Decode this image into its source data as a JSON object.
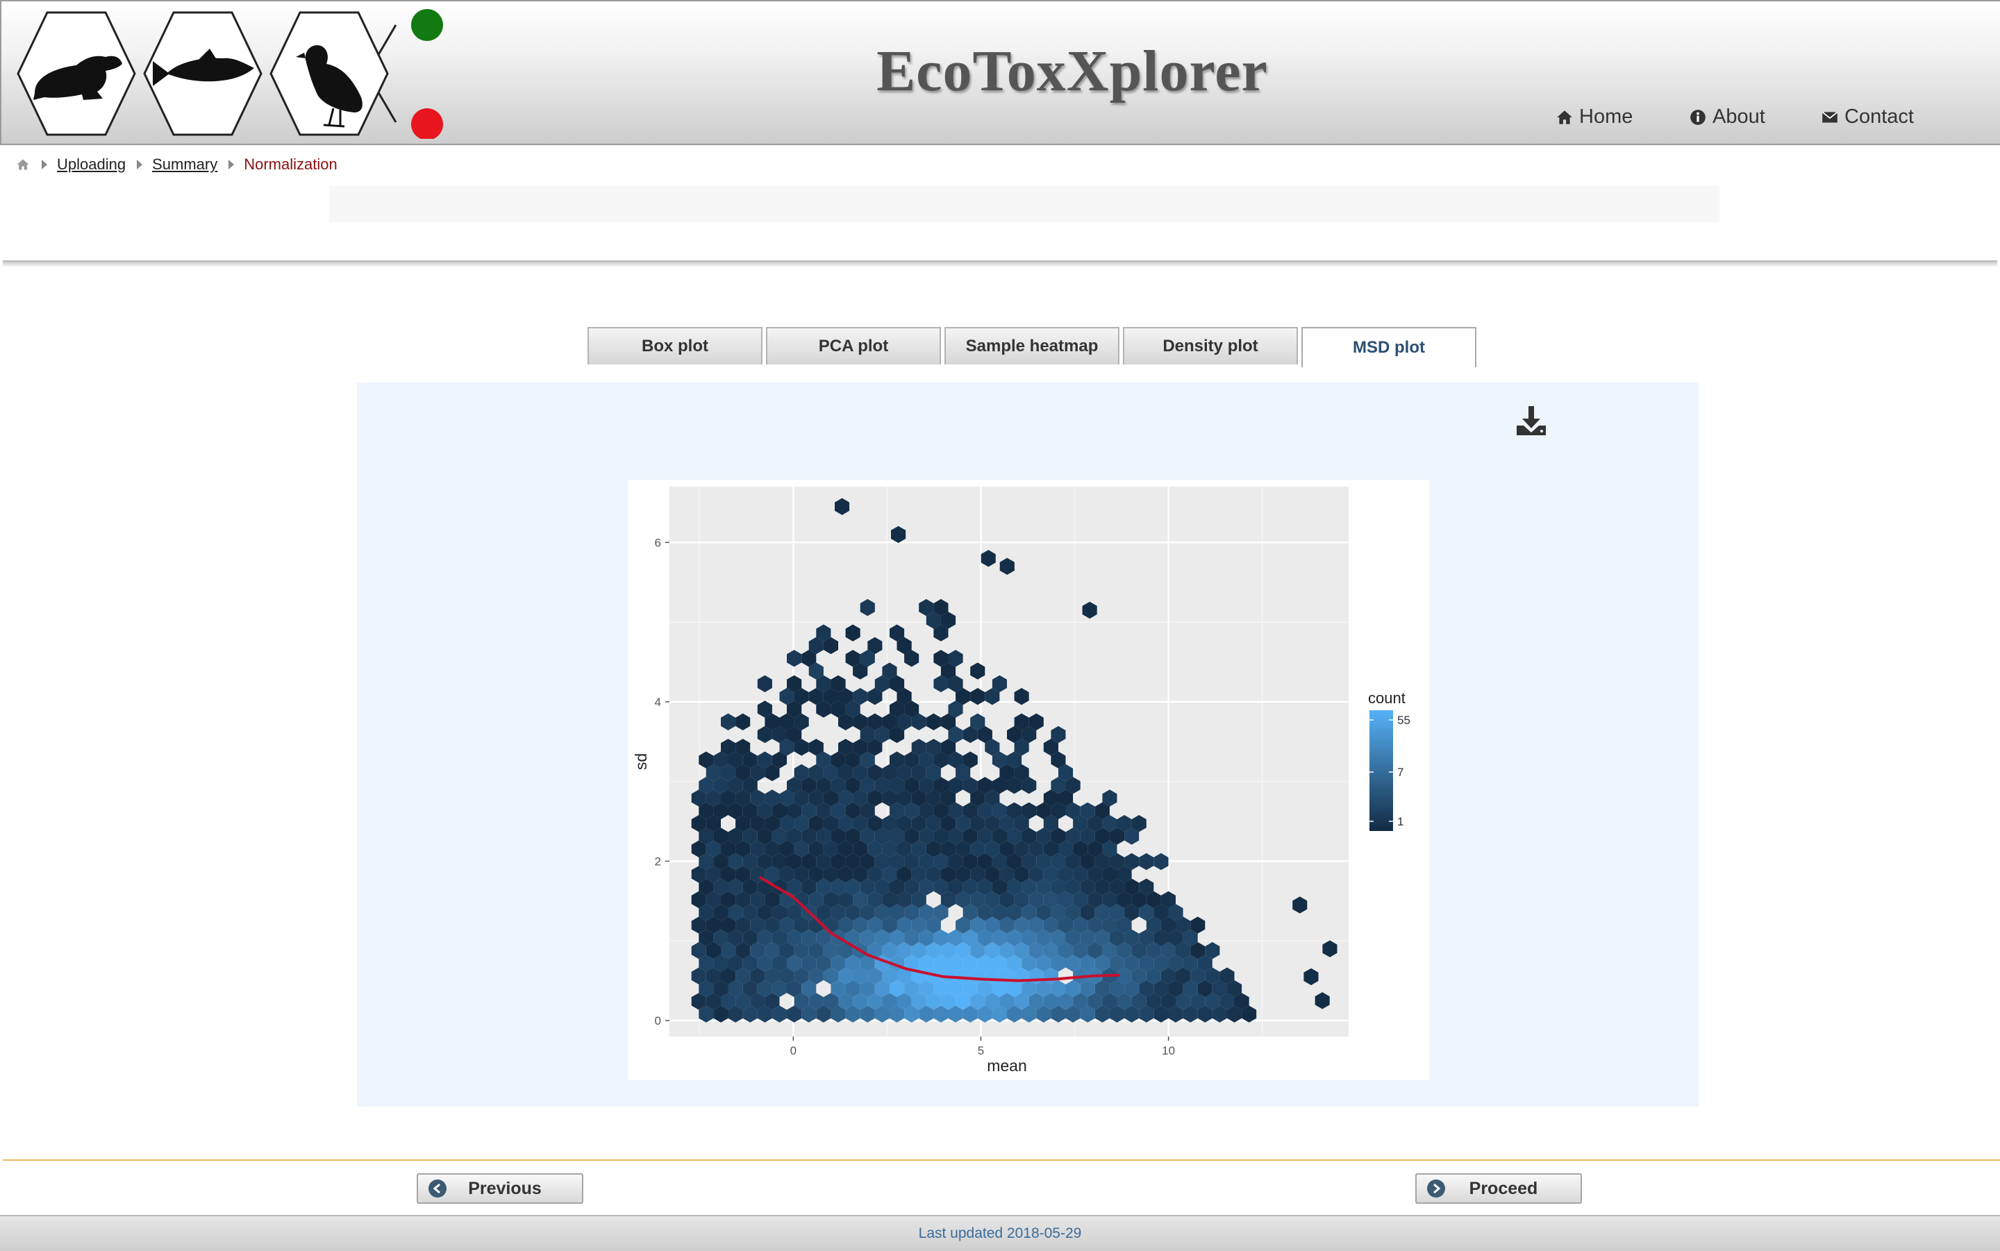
{
  "app": {
    "title": "EcoToxXplorer"
  },
  "nav": {
    "home": "Home",
    "about": "About",
    "contact": "Contact"
  },
  "breadcrumb": {
    "items": [
      "Uploading",
      "Summary"
    ],
    "current": "Normalization"
  },
  "tabs": [
    {
      "label": "Box plot"
    },
    {
      "label": "PCA plot"
    },
    {
      "label": "Sample heatmap"
    },
    {
      "label": "Density plot"
    },
    {
      "label": "MSD plot",
      "active": true
    }
  ],
  "buttons": {
    "previous": "Previous",
    "proceed": "Proceed"
  },
  "footer": {
    "text": "Last updated 2018-05-29"
  },
  "colors": {
    "active_tab": "#2c4f73",
    "current_crumb": "#8a1010",
    "accent_line": "#f0b95a",
    "trend_line": "#c8102e"
  },
  "icons": [
    "frog-icon",
    "fish-icon",
    "bird-icon",
    "home-icon",
    "info-icon",
    "envelope-icon",
    "download-icon",
    "arrow-left-circle-icon",
    "arrow-right-circle-icon"
  ],
  "chart_data": {
    "type": "hexbin",
    "xlabel": "mean",
    "ylabel": "sd",
    "xlim": [
      -3.3,
      14.8
    ],
    "ylim": [
      -0.2,
      6.7
    ],
    "x_ticks": [
      0,
      5,
      10
    ],
    "y_ticks": [
      0,
      2,
      4,
      6
    ],
    "grid": true,
    "legend": {
      "title": "count",
      "ticks": [
        1,
        7,
        55
      ],
      "position": "right",
      "color_low": "#132b43",
      "color_high": "#56b1f7"
    },
    "trend_line": [
      [
        -0.9,
        1.8
      ],
      [
        0,
        1.55
      ],
      [
        1,
        1.1
      ],
      [
        2,
        0.82
      ],
      [
        3,
        0.65
      ],
      [
        4,
        0.55
      ],
      [
        5,
        0.52
      ],
      [
        6,
        0.5
      ],
      [
        7,
        0.52
      ],
      [
        8,
        0.56
      ],
      [
        8.7,
        0.57
      ]
    ],
    "outliers": [
      [
        1.3,
        6.45
      ],
      [
        2.8,
        6.1
      ],
      [
        5.2,
        5.8
      ],
      [
        5.7,
        5.7
      ],
      [
        7.9,
        5.15
      ],
      [
        13.5,
        1.45
      ],
      [
        14.3,
        0.9
      ],
      [
        13.8,
        0.55
      ],
      [
        14.1,
        0.25
      ]
    ]
  }
}
